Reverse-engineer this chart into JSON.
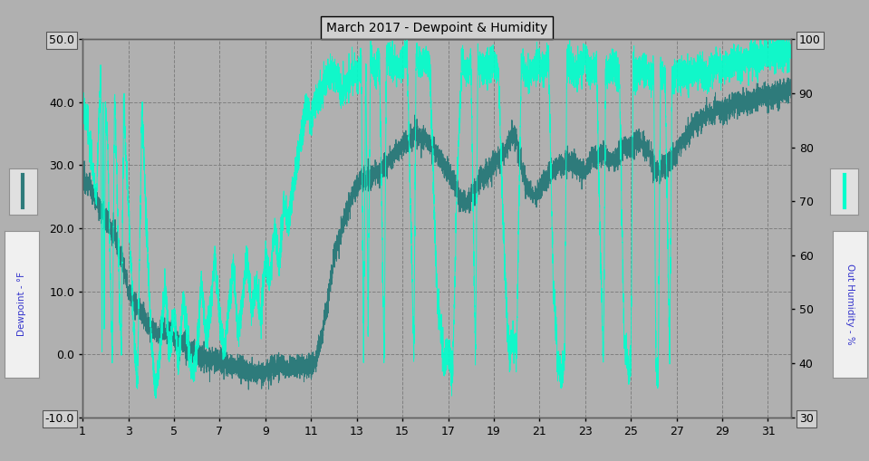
{
  "title": "March 2017 - Dewpoint & Humidity",
  "bg_color": "#b0b0b0",
  "plot_bg_color": "#b0b0b0",
  "dewpoint_color": "#2e7b7b",
  "humidity_color": "#00ffcc",
  "ylim_left": [
    -10.0,
    50.0
  ],
  "ylim_right": [
    30,
    100
  ],
  "xlim": [
    1,
    32
  ],
  "xticks": [
    1,
    3,
    5,
    7,
    9,
    11,
    13,
    15,
    17,
    19,
    21,
    23,
    25,
    27,
    29,
    31
  ],
  "yticks_left": [
    -10.0,
    0.0,
    10.0,
    20.0,
    30.0,
    40.0,
    50.0
  ],
  "yticks_right": [
    30,
    40,
    50,
    60,
    70,
    80,
    90,
    100
  ],
  "title_fontsize": 10,
  "tick_fontsize": 9,
  "grid_color": "#808080",
  "spine_color": "#606060"
}
